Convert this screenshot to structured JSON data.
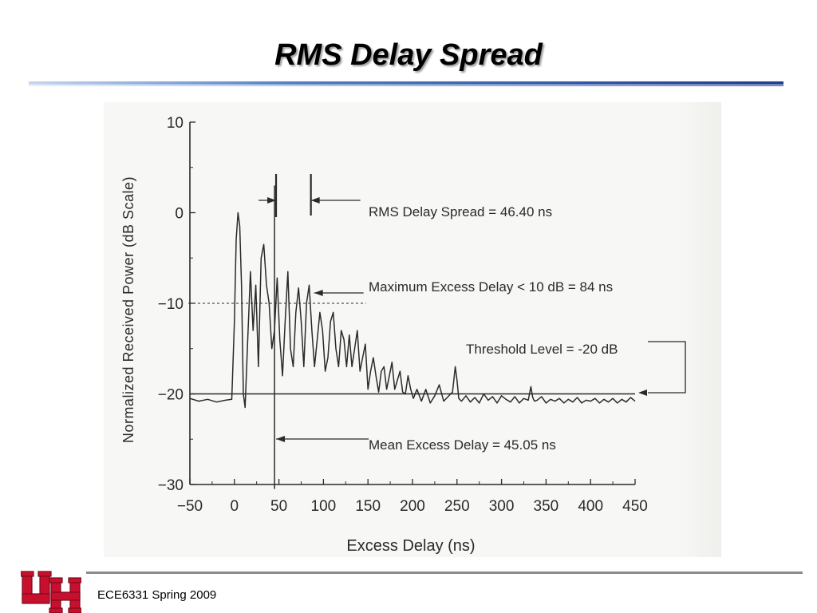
{
  "slide": {
    "title": "RMS Delay Spread",
    "footer": "ECE6331 Spring 2009",
    "logo_icon": "uh-interlocking-logo",
    "logo_color": "#c8102e"
  },
  "chart_data": {
    "type": "line",
    "title": "",
    "xlabel": "Excess Delay (ns)",
    "ylabel": "Normalized Received Power (dB Scale)",
    "xlim": [
      -50,
      450
    ],
    "ylim": [
      -30,
      10
    ],
    "x_ticks": [
      "−50",
      "0",
      "50",
      "100",
      "150",
      "200",
      "250",
      "300",
      "350",
      "400",
      "450"
    ],
    "y_ticks": [
      "10",
      "0",
      "−10",
      "−20",
      "−30"
    ],
    "grid": false,
    "legend": "none",
    "reference_lines": {
      "threshold_db": -20,
      "max_excess_level_db": -10,
      "mean_excess_delay_ns": 45.05
    },
    "rms_arrows_ns": [
      45,
      85
    ],
    "annotations": [
      "RMS Delay Spread = 46.40 ns",
      "Maximum Excess Delay < 10 dB = 84 ns",
      "Threshold Level = -20 dB",
      "Mean Excess Delay = 45.05 ns"
    ],
    "x": [
      -50,
      -40,
      -30,
      -20,
      -10,
      -3,
      0,
      2,
      4,
      6,
      8,
      10,
      12,
      15,
      18,
      21,
      24,
      27,
      30,
      33,
      36,
      39,
      42,
      45,
      48,
      51,
      54,
      57,
      60,
      63,
      66,
      69,
      72,
      75,
      78,
      81,
      84,
      87,
      90,
      93,
      96,
      99,
      102,
      105,
      108,
      111,
      114,
      117,
      120,
      123,
      126,
      129,
      132,
      135,
      138,
      141,
      144,
      147,
      150,
      153,
      156,
      159,
      162,
      165,
      168,
      171,
      174,
      177,
      180,
      183,
      186,
      189,
      192,
      195,
      198,
      201,
      205,
      210,
      215,
      220,
      225,
      230,
      235,
      240,
      245,
      248,
      250,
      252,
      255,
      260,
      265,
      270,
      275,
      280,
      285,
      290,
      295,
      300,
      305,
      310,
      315,
      320,
      325,
      330,
      333,
      335,
      337,
      340,
      345,
      350,
      355,
      360,
      365,
      370,
      375,
      380,
      385,
      390,
      395,
      400,
      405,
      410,
      415,
      420,
      425,
      430,
      435,
      440,
      445,
      450
    ],
    "values": [
      -20.5,
      -20.8,
      -20.6,
      -20.9,
      -20.7,
      -20.6,
      -12,
      -3,
      0,
      -1.5,
      -8,
      -20,
      -21.5,
      -14,
      -6.5,
      -13,
      -8,
      -17,
      -5,
      -3.5,
      -8,
      -10,
      -15,
      -13,
      -7.2,
      -14,
      -18,
      -12,
      -6.5,
      -15,
      -17,
      -11,
      -8.3,
      -12,
      -17,
      -10,
      -8,
      -13,
      -17,
      -14,
      -11,
      -13,
      -17.5,
      -16,
      -12,
      -11,
      -15,
      -17,
      -13,
      -14,
      -17,
      -13.5,
      -17,
      -15,
      -13,
      -17.5,
      -16,
      -14.5,
      -19.5,
      -17.5,
      -16,
      -18,
      -19.8,
      -17.5,
      -17,
      -19.5,
      -18,
      -16.5,
      -19.5,
      -18.5,
      -17.5,
      -19.8,
      -20,
      -18,
      -19.5,
      -20.5,
      -19.5,
      -20.8,
      -19.5,
      -21,
      -20.2,
      -19,
      -20.8,
      -20.3,
      -19.8,
      -17,
      -18.5,
      -20.5,
      -20.8,
      -20.2,
      -20.9,
      -20.4,
      -21,
      -20,
      -20.7,
      -20.3,
      -21,
      -20.2,
      -20.6,
      -20.9,
      -20.3,
      -21,
      -20.5,
      -20.7,
      -19.2,
      -20.4,
      -20.8,
      -20.7,
      -20.3,
      -21,
      -20.6,
      -20.8,
      -20.5,
      -21,
      -20.6,
      -20.9,
      -20.4,
      -21,
      -20.7,
      -20.8,
      -20.5,
      -21,
      -20.6,
      -20.9,
      -20.5,
      -21,
      -20.6,
      -20.9,
      -20.4,
      -20.8
    ]
  }
}
